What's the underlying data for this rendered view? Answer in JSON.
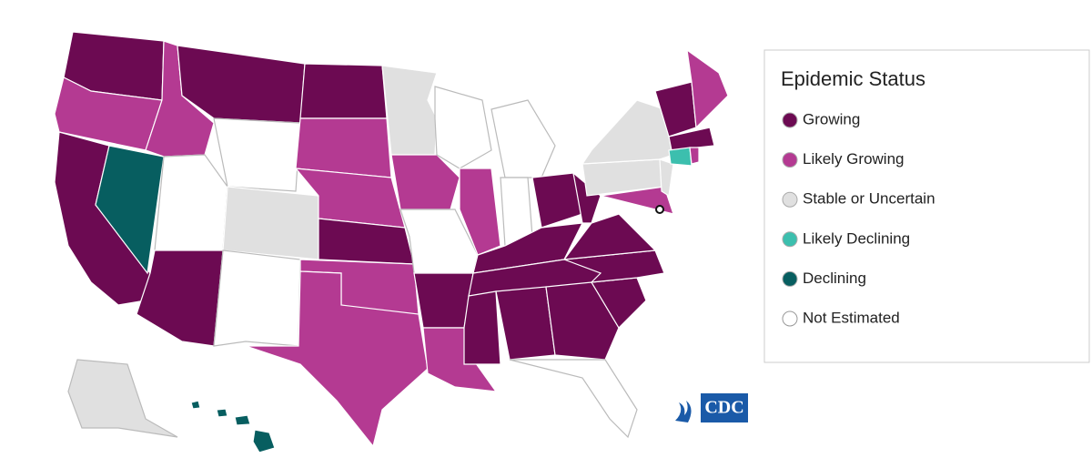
{
  "legend": {
    "title": "Epidemic Status",
    "items": [
      {
        "label": "Growing",
        "color": "#6c0a52"
      },
      {
        "label": "Likely Growing",
        "color": "#b43a92"
      },
      {
        "label": "Stable or Uncertain",
        "color": "#e0e0e0"
      },
      {
        "label": "Likely Declining",
        "color": "#3cbfae"
      },
      {
        "label": "Declining",
        "color": "#075e60"
      },
      {
        "label": "Not Estimated",
        "color": "#ffffff"
      }
    ]
  },
  "logo": {
    "text": "CDC"
  }
}
